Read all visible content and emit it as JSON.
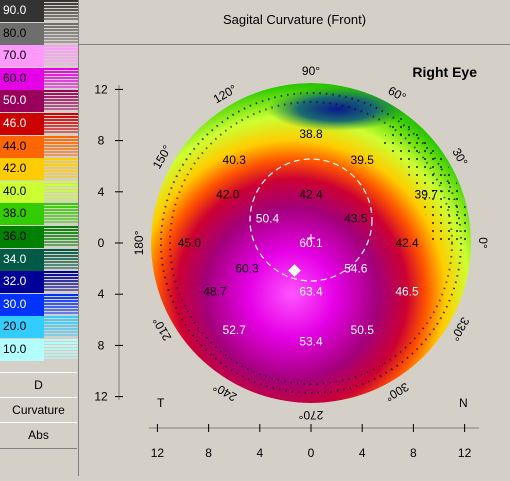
{
  "header": {
    "title": "Sagital Curvature (Front)"
  },
  "eye_label": "Right Eye",
  "scale": {
    "entries": [
      {
        "label": "90.0",
        "color": "#333333",
        "text": "#ffffff"
      },
      {
        "label": "80.0",
        "color": "#6e6e6e",
        "text": "#000000"
      },
      {
        "label": "70.0",
        "color": "#ff99ff",
        "text": "#000000"
      },
      {
        "label": "60.0",
        "color": "#e600e6",
        "text": "#000000"
      },
      {
        "label": "50.0",
        "color": "#99005c",
        "text": "#ffffff"
      },
      {
        "label": "46.0",
        "color": "#cc0000",
        "text": "#ffffff"
      },
      {
        "label": "44.0",
        "color": "#ff6600",
        "text": "#000000"
      },
      {
        "label": "42.0",
        "color": "#ffcc00",
        "text": "#000000"
      },
      {
        "label": "40.0",
        "color": "#ccff33",
        "text": "#000000"
      },
      {
        "label": "38.0",
        "color": "#33cc00",
        "text": "#000000"
      },
      {
        "label": "36.0",
        "color": "#008000",
        "text": "#000000"
      },
      {
        "label": "34.0",
        "color": "#005a46",
        "text": "#ffffff"
      },
      {
        "label": "32.0",
        "color": "#000099",
        "text": "#ffffff"
      },
      {
        "label": "30.0",
        "color": "#0033ff",
        "text": "#ffffff"
      },
      {
        "label": "20.0",
        "color": "#33ccff",
        "text": "#000000"
      },
      {
        "label": "10.0",
        "color": "#b3ffff",
        "text": "#000000"
      }
    ],
    "buttons": [
      "D",
      "Curvature",
      "Abs"
    ]
  },
  "axes": {
    "y_ticks": [
      "12",
      "8",
      "4",
      "0",
      "4",
      "8",
      "12"
    ],
    "x_ticks": [
      "12",
      "8",
      "4",
      "0",
      "4",
      "8",
      "12"
    ],
    "temporal_label": "T",
    "nasal_label": "N"
  },
  "angles": [
    {
      "text": "90°",
      "deg": 90
    },
    {
      "text": "60°",
      "deg": 60
    },
    {
      "text": "30°",
      "deg": 30
    },
    {
      "text": "0°",
      "deg": 0
    },
    {
      "text": "330°",
      "deg": 330
    },
    {
      "text": "300°",
      "deg": 300
    },
    {
      "text": "270°",
      "deg": 270
    },
    {
      "text": "240°",
      "deg": 240
    },
    {
      "text": "210°",
      "deg": 210
    },
    {
      "text": "180°",
      "deg": 180
    },
    {
      "text": "150°",
      "deg": 150
    },
    {
      "text": "120°",
      "deg": 120
    }
  ],
  "values": [
    {
      "text": "38.8",
      "x": 0,
      "y": 8.5,
      "color": "#000000"
    },
    {
      "text": "40.3",
      "x": -6,
      "y": 6.5,
      "color": "#000000"
    },
    {
      "text": "39.5",
      "x": 4,
      "y": 6.5,
      "color": "#000000"
    },
    {
      "text": "42.0",
      "x": -6.5,
      "y": 3.8,
      "color": "#000000"
    },
    {
      "text": "42.4",
      "x": 0,
      "y": 3.8,
      "color": "#000000"
    },
    {
      "text": "39.7",
      "x": 9,
      "y": 3.8,
      "color": "#000000"
    },
    {
      "text": "50.4",
      "x": -3.4,
      "y": 1.9,
      "color": "#ffffff"
    },
    {
      "text": "43.5",
      "x": 3.5,
      "y": 1.9,
      "color": "#000000"
    },
    {
      "text": "45.0",
      "x": -9.5,
      "y": 0,
      "color": "#000000"
    },
    {
      "text": "60.1",
      "x": 0,
      "y": 0,
      "color": "#ffffff"
    },
    {
      "text": "42.4",
      "x": 7.5,
      "y": 0,
      "color": "#000000"
    },
    {
      "text": "60.3",
      "x": -5,
      "y": -2,
      "color": "#000000"
    },
    {
      "text": "54.6",
      "x": 3.5,
      "y": -2,
      "color": "#ffffff"
    },
    {
      "text": "48.7",
      "x": -7.5,
      "y": -3.8,
      "color": "#000000"
    },
    {
      "text": "63.4",
      "x": 0,
      "y": -3.8,
      "color": "#ffffff"
    },
    {
      "text": "46.5",
      "x": 7.5,
      "y": -3.8,
      "color": "#ffffff"
    },
    {
      "text": "52.7",
      "x": -6,
      "y": -6.8,
      "color": "#ffffff"
    },
    {
      "text": "50.5",
      "x": 4,
      "y": -6.8,
      "color": "#ffffff"
    },
    {
      "text": "53.4",
      "x": 0,
      "y": -7.7,
      "color": "#ffffff"
    }
  ]
}
